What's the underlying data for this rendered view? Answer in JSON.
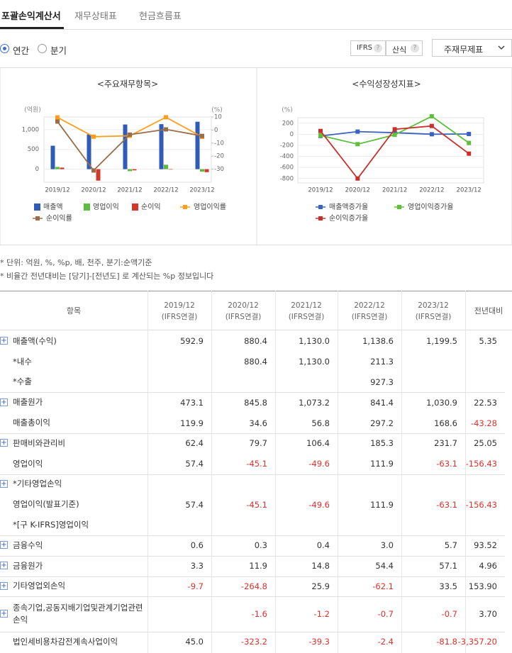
{
  "tabs": [
    "포괄손익계산서",
    "재무상태표",
    "현금흐름표"
  ],
  "period_options": [
    "연간",
    "분기"
  ],
  "buttons": [
    "IFRS",
    "산식"
  ],
  "help_icon": "?",
  "select": "주재무제표",
  "charts": [
    {
      "type": "bar_line",
      "title": "<주요재무항목>",
      "y_label": "(억원)",
      "y2_label": "(%)",
      "categories": [
        "2019/12",
        "2020/12",
        "2021/12",
        "2022/12",
        "2023/12"
      ],
      "ylim": [
        -330,
        1320
      ],
      "yticks": [
        0,
        500,
        {
          "value": 1000,
          "label": "1,000"
        }
      ],
      "y2lim": [
        -40,
        10
      ],
      "y2ticks": [
        10,
        0,
        -10,
        -20,
        -30
      ],
      "grid": true,
      "series": [
        {
          "name": "매출액",
          "type": "bar",
          "color": "#2f5cb8",
          "values": [
            592.9,
            880.4,
            1130.0,
            1138.6,
            1199.5
          ]
        },
        {
          "name": "영업이익",
          "type": "bar",
          "color": "#5cbc3c",
          "values": [
            57.4,
            -45.1,
            -49.6,
            111.9,
            -63.1
          ]
        },
        {
          "name": "순이익",
          "type": "bar",
          "color": "#d3372a",
          "values": [
            40,
            -290,
            -30,
            -10,
            -75
          ]
        },
        {
          "name": "영업이익률",
          "type": "line",
          "axis": "y2",
          "color": "#ff9e1b",
          "values": [
            9.7,
            -5.1,
            -4.4,
            9.8,
            -5.3
          ]
        },
        {
          "name": "순이익률",
          "type": "line",
          "axis": "y2",
          "color": "#9a6d48",
          "values": [
            6.5,
            -31,
            -3.5,
            0.5,
            -4.5
          ]
        }
      ]
    },
    {
      "type": "line",
      "title": "<수익성장성지표>",
      "y_label": "(%)",
      "categories": [
        "2019/12",
        "2020/12",
        "2021/12",
        "2022/12",
        "2023/12"
      ],
      "ylim": [
        -880,
        300
      ],
      "yticks": [
        200,
        0,
        -200,
        -400,
        -600,
        -800
      ],
      "grid": true,
      "series": [
        {
          "name": "매출액증가율",
          "color": "#3a62c0",
          "values": [
            -30,
            48.5,
            28.3,
            0.8,
            5.35
          ]
        },
        {
          "name": "영업이익증가율",
          "color": "#5dbf3a",
          "values": [
            -20,
            -178.6,
            -10,
            325,
            -156.43
          ]
        },
        {
          "name": "순이익증가율",
          "color": "#c9302c",
          "values": [
            60,
            -800,
            90,
            150,
            -350
          ]
        }
      ]
    }
  ],
  "notes": [
    "* 단위: 억원, %, %p, 배, 천주, 분기:순액기준",
    "* 비율간 전년대비는 [당기]-[전년도] 로 계산되는 %p 정보입니다"
  ],
  "table": {
    "header": {
      "item": "항목",
      "periods": [
        {
          "date": "2019/12",
          "basis": "(IFRS연결)"
        },
        {
          "date": "2020/12",
          "basis": "(IFRS연결)"
        },
        {
          "date": "2021/12",
          "basis": "(IFRS연결)"
        },
        {
          "date": "2022/12",
          "basis": "(IFRS연결)"
        },
        {
          "date": "2023/12",
          "basis": "(IFRS연결)"
        }
      ],
      "change": "전년대비"
    },
    "rows": [
      {
        "label": "매출액(수익)",
        "expandable": true,
        "values": [
          "592.9",
          "880.4",
          "1,130.0",
          "1,138.6",
          "1,199.5",
          "5.35"
        ]
      },
      {
        "label": "*내수",
        "expandable": false,
        "values": [
          null,
          "880.4",
          "1,130.0",
          "211.3",
          null,
          null
        ]
      },
      {
        "label": "*수출",
        "expandable": false,
        "values": [
          null,
          null,
          null,
          "927.3",
          null,
          null
        ]
      },
      {
        "label": "매출원가",
        "expandable": true,
        "values": [
          "473.1",
          "845.8",
          "1,073.2",
          "841.4",
          "1,030.9",
          "22.53"
        ]
      },
      {
        "label": "매출총이익",
        "expandable": false,
        "values": [
          "119.9",
          "34.6",
          "56.8",
          "297.2",
          "168.6",
          "-43.28"
        ]
      },
      {
        "label": "판매비와관리비",
        "expandable": true,
        "values": [
          "62.4",
          "79.7",
          "106.4",
          "185.3",
          "231.7",
          "25.05"
        ]
      },
      {
        "label": "영업이익",
        "expandable": false,
        "values": [
          "57.4",
          "-45.1",
          "-49.6",
          "111.9",
          "-63.1",
          "-156.43"
        ]
      },
      {
        "label": "*기타영업손익",
        "expandable": true,
        "values": [
          null,
          null,
          null,
          null,
          null,
          null
        ]
      },
      {
        "label": "영업이익(발표기준)",
        "expandable": false,
        "values": [
          "57.4",
          "-45.1",
          "-49.6",
          "111.9",
          "-63.1",
          "-156.43"
        ]
      },
      {
        "label": "*[구 K-IFRS]영업이익",
        "expandable": false,
        "values": [
          null,
          null,
          null,
          null,
          null,
          null
        ]
      },
      {
        "label": "금융수익",
        "expandable": true,
        "values": [
          "0.6",
          "0.3",
          "0.4",
          "3.0",
          "5.7",
          "93.52"
        ]
      },
      {
        "label": "금융원가",
        "expandable": true,
        "values": [
          "3.3",
          "11.9",
          "14.8",
          "54.4",
          "57.1",
          "4.96"
        ]
      },
      {
        "label": "기타영업외손익",
        "expandable": true,
        "values": [
          "-9.7",
          "-264.8",
          "25.9",
          "-62.1",
          "33.5",
          "153.90"
        ]
      },
      {
        "label": "종속기업,공동지배기업및관계기업관련손익",
        "expandable": true,
        "values": [
          null,
          "-1.6",
          "-1.2",
          "-0.7",
          "-0.7",
          "3.70"
        ]
      },
      {
        "label": "법인세비용차감전계속사업이익",
        "expandable": false,
        "values": [
          "45.0",
          "-323.2",
          "-39.3",
          "-2.4",
          "-81.8",
          "-3,357.20"
        ]
      }
    ]
  }
}
